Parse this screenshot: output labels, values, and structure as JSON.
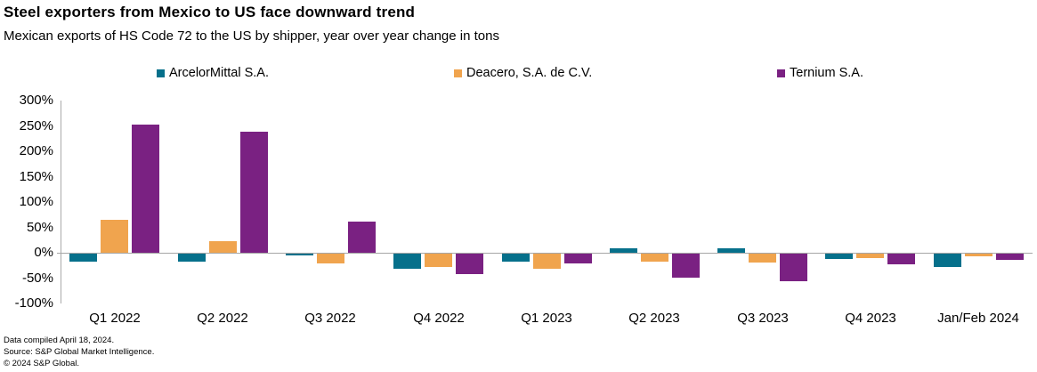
{
  "header": {
    "title": "Steel exporters from Mexico to US face downward trend",
    "subtitle": "Mexican exports of HS Code 72 to the US by shipper, year over year change in tons"
  },
  "chart_data": {
    "type": "bar",
    "title": "Steel exporters from Mexico to US face downward trend",
    "subtitle": "Mexican exports of HS Code 72 to the US by shipper, year over year change in tons",
    "unit": "percent year-over-year change in tons",
    "categories": [
      "Q1 2022",
      "Q2 2022",
      "Q3 2022",
      "Q4 2022",
      "Q1 2023",
      "Q2 2023",
      "Q3 2023",
      "Q4 2023",
      "Jan/Feb 2024"
    ],
    "series": [
      {
        "name": "ArcelorMittal S.A.",
        "color": "#06708b",
        "values": [
          -15,
          -15,
          -4,
          -29,
          -15,
          9,
          9,
          -10,
          -26
        ]
      },
      {
        "name": "Deacero, S.A. de C.V.",
        "color": "#f0a44e",
        "values": [
          65,
          22,
          -20,
          -26,
          -30,
          -16,
          -17,
          -9,
          -5
        ]
      },
      {
        "name": "Ternium S.A.",
        "color": "#7a2182",
        "values": [
          252,
          238,
          61,
          -41,
          -20,
          -47,
          -55,
          -21,
          -12
        ]
      }
    ],
    "y_axis": {
      "min": -100,
      "max": 300,
      "step": 50,
      "tick_labels": [
        "300%",
        "250%",
        "200%",
        "150%",
        "100%",
        "50%",
        "0%",
        "-50%",
        "-100%"
      ]
    },
    "legend_position": "top",
    "grid": false,
    "axis_color": "#a6a6a6"
  },
  "footer": {
    "line1": "Data compiled April 18, 2024.",
    "line2": "Source: S&P Global Market Intelligence.",
    "line3": "© 2024 S&P Global."
  }
}
